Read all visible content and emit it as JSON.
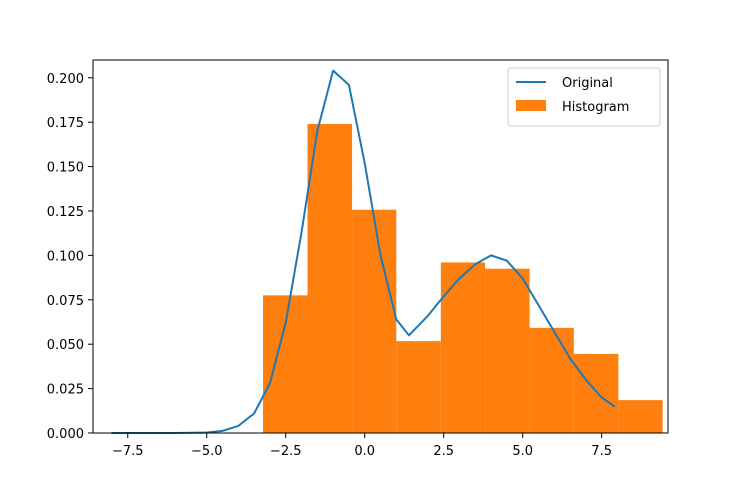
{
  "chart_data": {
    "type": "bar",
    "title": "",
    "xlabel": "",
    "ylabel": "",
    "xlim": [
      -8.6,
      9.6
    ],
    "ylim": [
      0,
      0.21
    ],
    "grid": false,
    "legend_placement": "top-right",
    "x_ticks": [
      -7.5,
      -5.0,
      -2.5,
      0.0,
      2.5,
      5.0,
      7.5
    ],
    "x_tick_labels": [
      "−7.5",
      "−5.0",
      "−2.5",
      "0.0",
      "2.5",
      "5.0",
      "7.5"
    ],
    "y_ticks": [
      0.0,
      0.025,
      0.05,
      0.075,
      0.1,
      0.125,
      0.15,
      0.175,
      0.2
    ],
    "y_tick_labels": [
      "0.000",
      "0.025",
      "0.050",
      "0.075",
      "0.100",
      "0.125",
      "0.150",
      "0.175",
      "0.200"
    ],
    "colors": {
      "original": "#1f77b4",
      "histogram": "#ff7f0e"
    },
    "series": [
      {
        "name": "Original",
        "kind": "line",
        "x": [
          -8.0,
          -7.0,
          -6.0,
          -5.0,
          -4.5,
          -4.0,
          -3.5,
          -3.0,
          -2.5,
          -2.0,
          -1.5,
          -1.0,
          -0.5,
          0.0,
          0.5,
          1.0,
          1.4,
          2.0,
          2.5,
          3.0,
          3.5,
          4.0,
          4.5,
          5.0,
          5.5,
          6.0,
          6.5,
          7.0,
          7.5,
          7.9
        ],
        "y": [
          0.0,
          0.0,
          0.0,
          0.0003,
          0.0012,
          0.004,
          0.011,
          0.028,
          0.062,
          0.113,
          0.17,
          0.204,
          0.196,
          0.152,
          0.1,
          0.064,
          0.055,
          0.066,
          0.077,
          0.087,
          0.095,
          0.1,
          0.097,
          0.087,
          0.072,
          0.057,
          0.042,
          0.03,
          0.02,
          0.015
        ]
      },
      {
        "name": "Histogram",
        "kind": "histogram",
        "bin_edges": [
          -3.22,
          -1.81,
          -0.4,
          1.0,
          2.41,
          3.81,
          5.22,
          6.62,
          8.03,
          9.43
        ],
        "values": [
          0.0775,
          0.174,
          0.1257,
          0.0517,
          0.096,
          0.0925,
          0.0592,
          0.0445,
          0.0185
        ]
      }
    ]
  }
}
